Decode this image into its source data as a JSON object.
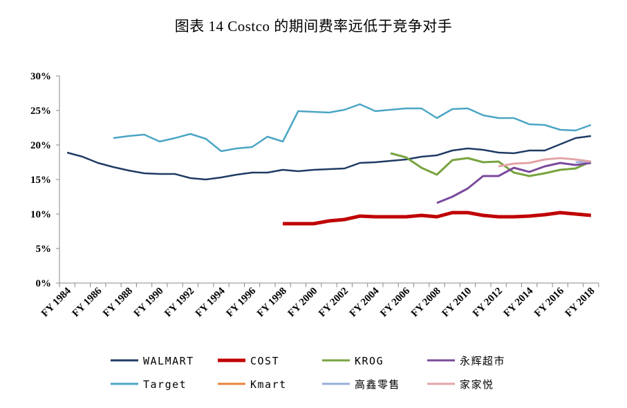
{
  "chart_data": {
    "type": "line",
    "title": "图表 14 Costco 的期间费率远低于竞争对手",
    "xlabel": "",
    "ylabel": "",
    "ylim": [
      0,
      30
    ],
    "y_ticks": [
      0,
      5,
      10,
      15,
      20,
      25,
      30
    ],
    "y_tick_labels": [
      "0%",
      "5%",
      "10%",
      "15%",
      "20%",
      "25%",
      "30%"
    ],
    "x_tick_labels": [
      "FY 1984",
      "FY 1986",
      "FY 1988",
      "FY 1990",
      "FY 1992",
      "FY 1994",
      "FY 1996",
      "FY 1998",
      "FY 2000",
      "FY 2002",
      "FY 2004",
      "FY 2006",
      "FY 2008",
      "FY 2010",
      "FY 2012",
      "FY 2014",
      "FY 2016",
      "FY 2018"
    ],
    "x_start": 1984,
    "x_end": 2018,
    "grid": false,
    "legend_position": "bottom",
    "series": [
      {
        "name": "WALMART",
        "color": "#1f3b64",
        "width": 2.5,
        "x": [
          1984,
          1985,
          1986,
          1987,
          1988,
          1989,
          1990,
          1991,
          1992,
          1993,
          1994,
          1995,
          1996,
          1997,
          1998,
          1999,
          2000,
          2001,
          2002,
          2003,
          2004,
          2005,
          2006,
          2007,
          2008,
          2009,
          2010,
          2011,
          2012,
          2013,
          2014,
          2015,
          2016,
          2017,
          2018
        ],
        "values": [
          18.9,
          18.3,
          17.4,
          16.8,
          16.3,
          15.9,
          15.8,
          15.8,
          15.2,
          15.0,
          15.3,
          15.7,
          16.0,
          16.0,
          16.4,
          16.2,
          16.4,
          16.5,
          16.6,
          17.4,
          17.5,
          17.7,
          17.9,
          18.3,
          18.5,
          19.2,
          19.5,
          19.3,
          18.9,
          18.8,
          19.2,
          19.2,
          20.1,
          21.0,
          21.3
        ]
      },
      {
        "name": "COST",
        "color": "#c00000",
        "width": 5,
        "x": [
          1998,
          1999,
          2000,
          2001,
          2002,
          2003,
          2004,
          2005,
          2006,
          2007,
          2008,
          2009,
          2010,
          2011,
          2012,
          2013,
          2014,
          2015,
          2016,
          2017,
          2018
        ],
        "values": [
          8.6,
          8.6,
          8.6,
          9.0,
          9.2,
          9.7,
          9.6,
          9.6,
          9.6,
          9.8,
          9.6,
          10.2,
          10.2,
          9.8,
          9.6,
          9.6,
          9.7,
          9.9,
          10.2,
          10.0,
          9.8
        ]
      },
      {
        "name": "KROG",
        "color": "#77a33d",
        "width": 3,
        "x": [
          2005,
          2006,
          2007,
          2008,
          2009,
          2010,
          2011,
          2012,
          2013,
          2014,
          2015,
          2016,
          2017,
          2018
        ],
        "values": [
          18.8,
          18.2,
          16.7,
          15.7,
          17.8,
          18.1,
          17.5,
          17.6,
          16.0,
          15.5,
          15.9,
          16.4,
          16.6,
          17.6
        ]
      },
      {
        "name": "永辉超市",
        "color": "#7a4a9c",
        "width": 3,
        "x": [
          2008,
          2009,
          2010,
          2011,
          2012,
          2013,
          2014,
          2015,
          2016,
          2017,
          2018
        ],
        "values": [
          11.6,
          12.5,
          13.7,
          15.5,
          15.5,
          16.7,
          16.1,
          16.9,
          17.4,
          17.1,
          17.4
        ]
      },
      {
        "name": "Target",
        "color": "#4aa5c4",
        "width": 2.5,
        "x": [
          1987,
          1988,
          1989,
          1990,
          1991,
          1992,
          1993,
          1994,
          1995,
          1996,
          1997,
          1998,
          1999,
          2000,
          2001,
          2002,
          2003,
          2004,
          2005,
          2006,
          2007,
          2008,
          2009,
          2010,
          2011,
          2012,
          2013,
          2014,
          2015,
          2016,
          2017,
          2018
        ],
        "values": [
          21.0,
          21.3,
          21.5,
          20.5,
          21.0,
          21.6,
          20.9,
          19.1,
          19.5,
          19.7,
          21.2,
          20.5,
          24.9,
          24.8,
          24.7,
          25.1,
          25.9,
          24.9,
          25.1,
          25.3,
          25.3,
          23.9,
          25.2,
          25.3,
          24.3,
          23.9,
          23.9,
          23.0,
          22.9,
          22.2,
          22.1,
          22.9
        ]
      },
      {
        "name": "Kmart",
        "color": "#e8833a",
        "width": 2.5,
        "x": [],
        "values": []
      },
      {
        "name": "高鑫零售",
        "color": "#96aedc",
        "width": 2.5,
        "x": [
          2017,
          2018
        ],
        "values": [
          17.5,
          17.6
        ]
      },
      {
        "name": "家家悦",
        "color": "#e3a4a8",
        "width": 3,
        "x": [
          2012,
          2013,
          2014,
          2015,
          2016,
          2017,
          2018
        ],
        "values": [
          16.9,
          17.3,
          17.4,
          17.9,
          18.1,
          17.9,
          17.6
        ]
      }
    ]
  }
}
